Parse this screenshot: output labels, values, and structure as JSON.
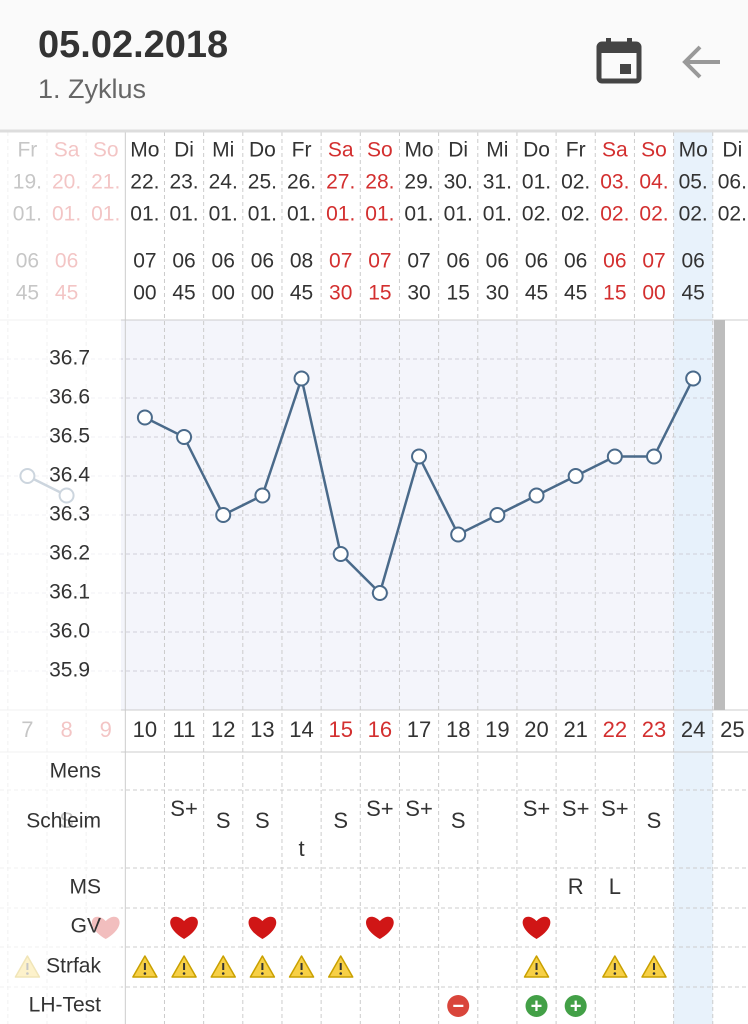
{
  "header": {
    "title": "05.02.2018",
    "subtitle": "1. Zyklus"
  },
  "columns": [
    {
      "weekday": "Fr",
      "day": "19.",
      "month": "01.",
      "hour": "06",
      "minute": "45"
    },
    {
      "weekday": "Sa",
      "day": "20.",
      "month": "01.",
      "hour": "06",
      "minute": "45",
      "color": "#d32f2f"
    },
    {
      "weekday": "So",
      "day": "21.",
      "month": "01.",
      "hour": null,
      "minute": null,
      "color": "#d32f2f"
    },
    {
      "weekday": "Mo",
      "day": "22.",
      "month": "01.",
      "hour": "07",
      "minute": "00"
    },
    {
      "weekday": "Di",
      "day": "23.",
      "month": "01.",
      "hour": "06",
      "minute": "45"
    },
    {
      "weekday": "Mi",
      "day": "24.",
      "month": "01.",
      "hour": "06",
      "minute": "00"
    },
    {
      "weekday": "Do",
      "day": "25.",
      "month": "01.",
      "hour": "06",
      "minute": "00"
    },
    {
      "weekday": "Fr",
      "day": "26.",
      "month": "01.",
      "hour": "08",
      "minute": "45"
    },
    {
      "weekday": "Sa",
      "day": "27.",
      "month": "01.",
      "hour": "07",
      "minute": "30",
      "color": "#d32f2f"
    },
    {
      "weekday": "So",
      "day": "28.",
      "month": "01.",
      "hour": "07",
      "minute": "15",
      "color": "#d32f2f"
    },
    {
      "weekday": "Mo",
      "day": "29.",
      "month": "01.",
      "hour": "07",
      "minute": "30"
    },
    {
      "weekday": "Di",
      "day": "30.",
      "month": "01.",
      "hour": "06",
      "minute": "15"
    },
    {
      "weekday": "Mi",
      "day": "31.",
      "month": "01.",
      "hour": "06",
      "minute": "30"
    },
    {
      "weekday": "Do",
      "day": "01.",
      "month": "02.",
      "hour": "06",
      "minute": "45"
    },
    {
      "weekday": "Fr",
      "day": "02.",
      "month": "02.",
      "hour": "06",
      "minute": "45"
    },
    {
      "weekday": "Sa",
      "day": "03.",
      "month": "02.",
      "hour": "06",
      "minute": "15",
      "color": "#d32f2f"
    },
    {
      "weekday": "So",
      "day": "04.",
      "month": "02.",
      "hour": "07",
      "minute": "00",
      "color": "#d32f2f"
    },
    {
      "weekday": "Mo",
      "day": "05.",
      "month": "02.",
      "hour": "06",
      "minute": "45",
      "background": "#e4f0fa"
    },
    {
      "weekday": "Di",
      "day": "06.",
      "month": "02.",
      "hour": null,
      "minute": null
    }
  ],
  "chart_data": {
    "type": "line",
    "x": [
      7,
      8,
      9,
      10,
      11,
      12,
      13,
      14,
      15,
      16,
      17,
      18,
      19,
      20,
      21,
      22,
      23,
      24,
      25
    ],
    "xlim": [
      6.3,
      25.4
    ],
    "series": [
      {
        "color": "#4a6a8a",
        "values": [
          36.4,
          36.35,
          null,
          36.55,
          36.5,
          36.3,
          36.35,
          36.65,
          36.2,
          36.1,
          36.45,
          36.25,
          36.3,
          36.35,
          36.4,
          36.45,
          36.45,
          36.65,
          null
        ]
      }
    ],
    "ylim": [
      35.8,
      36.8
    ],
    "yticks": [
      35.9,
      {
        "value": 36,
        "label": "36.0"
      },
      36.1,
      36.2,
      36.3,
      36.4,
      36.5,
      36.6,
      36.7
    ],
    "grid": true
  },
  "rows": [
    {
      "label": "Mens",
      "cells": [
        null,
        null,
        null,
        null,
        null,
        null,
        null,
        null,
        null,
        null,
        null,
        null,
        null,
        null,
        null,
        null,
        null,
        null,
        null
      ]
    },
    {
      "label": "Schleim",
      "cells": [
        null,
        "S",
        null,
        null,
        "S+",
        "S",
        "S",
        "t",
        "S",
        "S+",
        "S+",
        "S",
        null,
        "S+",
        "S+",
        "S+",
        "S",
        null,
        null
      ]
    },
    {
      "label": "MS",
      "cells": [
        null,
        null,
        null,
        null,
        null,
        null,
        null,
        null,
        null,
        null,
        null,
        null,
        null,
        null,
        "R",
        "L",
        null,
        null,
        null
      ]
    },
    {
      "label": "GV",
      "color": "#d01616",
      "cells": [
        false,
        false,
        true,
        false,
        true,
        false,
        true,
        false,
        false,
        true,
        false,
        false,
        false,
        true,
        false,
        false,
        false,
        false,
        false
      ]
    },
    {
      "label": "Strfak",
      "color": "#f7d046",
      "cells": [
        true,
        false,
        false,
        true,
        true,
        true,
        true,
        true,
        true,
        false,
        false,
        false,
        false,
        true,
        false,
        true,
        true,
        false,
        false
      ]
    },
    {
      "label": "LH-Test",
      "cells": [
        null,
        null,
        null,
        null,
        null,
        null,
        null,
        null,
        null,
        null,
        null,
        {
          "text": "−",
          "color": "#d9453b"
        },
        null,
        {
          "text": "+",
          "color": "#43a047"
        },
        {
          "text": "+",
          "color": "#43a047"
        },
        null,
        null,
        null,
        null
      ]
    }
  ]
}
